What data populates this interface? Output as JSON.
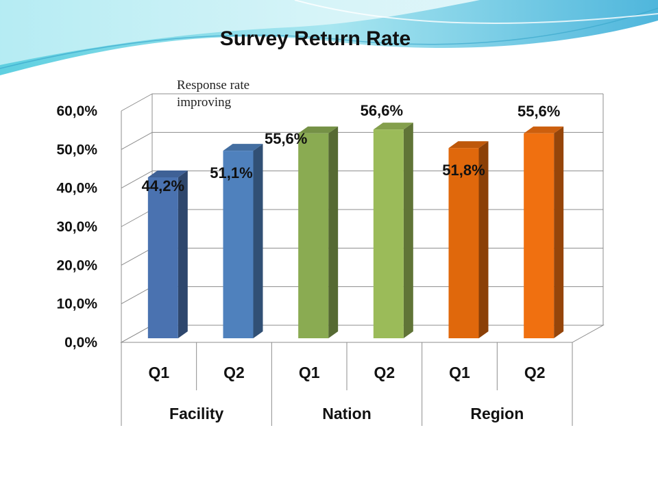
{
  "slide": {
    "title": "Survey Return Rate",
    "annotation": "Response rate\nimproving"
  },
  "chart_data": {
    "type": "bar",
    "title": "Survey Return Rate",
    "categories": [
      "Q1",
      "Q2",
      "Q1",
      "Q2",
      "Q1",
      "Q2"
    ],
    "groups": [
      {
        "name": "Facility",
        "categories": [
          "Q1",
          "Q2"
        ]
      },
      {
        "name": "Nation",
        "categories": [
          "Q1",
          "Q2"
        ]
      },
      {
        "name": "Region",
        "categories": [
          "Q1",
          "Q2"
        ]
      }
    ],
    "values": [
      44.2,
      51.1,
      55.6,
      56.6,
      51.8,
      55.6
    ],
    "data_labels": [
      "44,2%",
      "51,1%",
      "55,6%",
      "56,6%",
      "51,8%",
      "55,6%"
    ],
    "ylim": [
      0,
      60
    ],
    "yticks": [
      "0,0%",
      "10,0%",
      "20,0%",
      "30,0%",
      "40,0%",
      "50,0%",
      "60,0%"
    ],
    "xlabel": "",
    "ylabel": "",
    "grid": true,
    "style": "3d-column",
    "bar_colors": [
      "#4a72b0",
      "#4f81bd",
      "#8aab52",
      "#9bbb59",
      "#e0680c",
      "#f07010"
    ]
  }
}
